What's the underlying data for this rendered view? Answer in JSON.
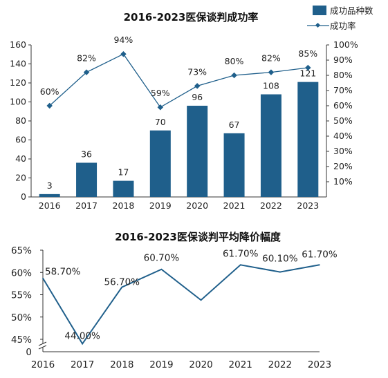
{
  "chart_data": [
    {
      "type": "bar",
      "title": "2016-2023医保谈判成功率",
      "categories": [
        "2016",
        "2017",
        "2018",
        "2019",
        "2020",
        "2021",
        "2022",
        "2023"
      ],
      "series": [
        {
          "name": "成功品种数",
          "type": "bar",
          "axis": "left",
          "values": [
            3,
            36,
            17,
            70,
            96,
            67,
            108,
            121
          ],
          "labels": [
            "3",
            "36",
            "17",
            "70",
            "96",
            "67",
            "108",
            "121"
          ],
          "color": "#1f5f8b"
        },
        {
          "name": "成功率",
          "type": "line",
          "axis": "right",
          "values": [
            60,
            82,
            94,
            59,
            73,
            80,
            82,
            85
          ],
          "labels": [
            "60%",
            "82%",
            "94%",
            "59%",
            "73%",
            "80%",
            "82%",
            "85%"
          ],
          "color": "#1f5f8b",
          "marker": "diamond"
        }
      ],
      "y_left": {
        "range": [
          0,
          160
        ],
        "ticks": [
          "0",
          "20",
          "40",
          "60",
          "80",
          "100",
          "120",
          "140",
          "160"
        ]
      },
      "y_right": {
        "range": [
          0,
          100
        ],
        "ticks": [
          "10%",
          "20%",
          "30%",
          "40%",
          "50%",
          "60%",
          "70%",
          "80%",
          "90%",
          "100%"
        ]
      },
      "legend": "top-right",
      "grid": false
    },
    {
      "type": "line",
      "title": "2016-2023医保谈判平均降价幅度",
      "categories": [
        "2016",
        "2017",
        "2018",
        "2019",
        "2020",
        "2021",
        "2022",
        "2023"
      ],
      "series": [
        {
          "values": [
            58.7,
            44.0,
            56.7,
            60.7,
            53.8,
            61.7,
            60.1,
            61.7
          ],
          "labels": [
            "58.70%",
            "44.00%",
            "56.70%",
            "60.70%",
            "",
            "61.70%",
            "60.10%",
            "61.70%"
          ],
          "color": "#1f5f8b"
        }
      ],
      "y_axis": {
        "range": [
          45,
          65
        ],
        "ticks": [
          "65%",
          "60%",
          "55%",
          "50%",
          "45%"
        ],
        "zero_label": "0",
        "axis_break": true
      },
      "grid": false
    }
  ]
}
